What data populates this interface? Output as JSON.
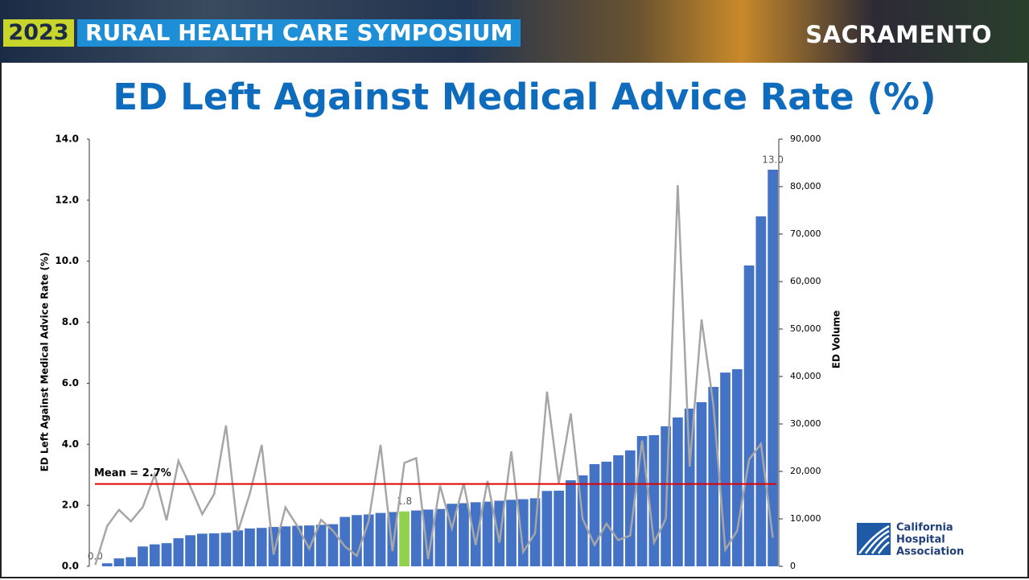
{
  "header": {
    "year": "2023",
    "event": "RURAL HEALTH CARE SYMPOSIUM",
    "city": "SACRAMENTO",
    "logo": [
      "California",
      "Hospital",
      "Association"
    ]
  },
  "chart_data": {
    "type": "bar-line",
    "title": "ED Left Against Medical Advice Rate (%)",
    "y_label": "ED Left Against Medical Advice Rate (%)",
    "y2_label": "ED Volume",
    "series": [
      {
        "name": "ED Left Against Medical Advice Rate (%)",
        "type": "bar",
        "color": "#4472c4",
        "highlight": {
          "index": 26,
          "color": "#92d050"
        },
        "values": [
          0,
          0.1,
          0.26,
          0.3,
          0.65,
          0.72,
          0.76,
          0.92,
          1.02,
          1.07,
          1.08,
          1.1,
          1.18,
          1.24,
          1.26,
          1.29,
          1.31,
          1.33,
          1.34,
          1.36,
          1.38,
          1.62,
          1.68,
          1.7,
          1.75,
          1.78,
          1.8,
          1.83,
          1.86,
          1.88,
          2.05,
          2.07,
          2.1,
          2.12,
          2.15,
          2.18,
          2.2,
          2.23,
          2.47,
          2.48,
          2.82,
          2.98,
          3.35,
          3.43,
          3.64,
          3.8,
          4.27,
          4.3,
          4.59,
          4.88,
          5.17,
          5.38,
          5.88,
          6.35,
          6.46,
          9.86,
          11.47,
          13.0
        ],
        "value_labels": [
          "0.0",
          null,
          null,
          null,
          null,
          null,
          null,
          null,
          null,
          null,
          null,
          null,
          null,
          null,
          null,
          null,
          null,
          null,
          null,
          null,
          null,
          null,
          null,
          null,
          null,
          null,
          "1.8",
          null,
          null,
          null,
          null,
          null,
          null,
          null,
          null,
          null,
          null,
          null,
          null,
          null,
          null,
          null,
          null,
          null,
          null,
          null,
          null,
          null,
          null,
          null,
          null,
          null,
          null,
          null,
          null,
          null,
          null,
          "13.0"
        ]
      },
      {
        "name": "ED Volume",
        "type": "line",
        "axis": "y2",
        "color": "#a6a6a6",
        "values": [
          300,
          8500,
          11900,
          9500,
          12500,
          19300,
          9700,
          22200,
          16800,
          11000,
          15200,
          29700,
          7300,
          15300,
          25600,
          2500,
          12400,
          8500,
          3700,
          9800,
          7500,
          4200,
          2200,
          9500,
          25600,
          3200,
          21800,
          22800,
          1500,
          17000,
          8000,
          17500,
          4500,
          18000,
          5000,
          24200,
          3000,
          7000,
          36800,
          17500,
          32200,
          10000,
          4500,
          9000,
          5500,
          6500,
          26500,
          5000,
          10000,
          80300,
          21000,
          52000,
          34000,
          3500,
          7500,
          22500,
          25800,
          6000
        ]
      }
    ],
    "mean": {
      "value": 2.7,
      "label": "Mean = 2.7%",
      "color": "#e00000"
    },
    "ylim": [
      0,
      14
    ],
    "yticks": [
      {
        "value": 0,
        "label": "0.0"
      },
      {
        "value": 2,
        "label": "2.0"
      },
      {
        "value": 4,
        "label": "4.0"
      },
      {
        "value": 6,
        "label": "6.0"
      },
      {
        "value": 8,
        "label": "8.0"
      },
      {
        "value": 10,
        "label": "10.0"
      },
      {
        "value": 12,
        "label": "12.0"
      },
      {
        "value": 14,
        "label": "14.0"
      }
    ],
    "y2lim": [
      0,
      90000
    ],
    "y2ticks": [
      0,
      {
        "value": 10000,
        "label": "10,000"
      },
      {
        "value": 20000,
        "label": "20,000"
      },
      {
        "value": 30000,
        "label": "30,000"
      },
      {
        "value": 40000,
        "label": "40,000"
      },
      {
        "value": 50000,
        "label": "50,000"
      },
      {
        "value": 60000,
        "label": "60,000"
      },
      {
        "value": 70000,
        "label": "70,000"
      },
      {
        "value": 80000,
        "label": "80,000"
      },
      {
        "value": 90000,
        "label": "90,000"
      }
    ],
    "grid": false
  }
}
